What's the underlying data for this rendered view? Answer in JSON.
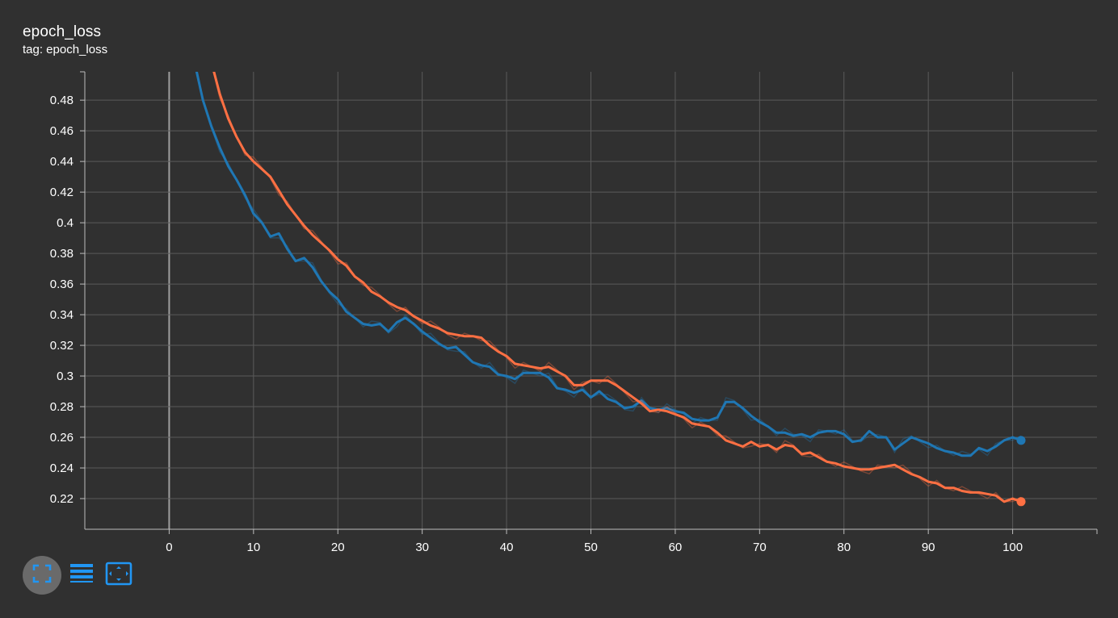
{
  "card": {
    "title": "epoch_loss",
    "subtitle": "tag: epoch_loss"
  },
  "toolbar": {
    "buttons": [
      {
        "icon": "fullscreen-icon"
      },
      {
        "icon": "data-table-icon"
      },
      {
        "icon": "fit-domain-icon"
      }
    ]
  },
  "chart_data": {
    "type": "line",
    "xlim": [
      -10,
      110
    ],
    "ylim": [
      0.2,
      0.4985
    ],
    "x_ticks": [
      0,
      10,
      20,
      30,
      40,
      50,
      60,
      70,
      80,
      90,
      100
    ],
    "x_tick_labels": [
      "0",
      "10",
      "20",
      "30",
      "40",
      "50",
      "60",
      "70",
      "80",
      "90",
      "100"
    ],
    "y_ticks": [
      0.22,
      0.24,
      0.26,
      0.28,
      0.3,
      0.32,
      0.34,
      0.36,
      0.38,
      0.4,
      0.42,
      0.44,
      0.46,
      0.48
    ],
    "y_tick_labels": [
      "0.22",
      "0.24",
      "0.26",
      "0.28",
      "0.3",
      "0.32",
      "0.34",
      "0.36",
      "0.38",
      "0.4",
      "0.42",
      "0.44",
      "0.46",
      "0.48"
    ],
    "grid": true,
    "series": [
      {
        "color": "#1f77b4",
        "x": [
          3,
          4,
          5,
          6,
          7,
          8,
          9,
          10,
          11,
          12,
          13,
          14,
          15,
          16,
          17,
          18,
          19,
          20,
          21,
          22,
          23,
          24,
          25,
          26,
          27,
          28,
          29,
          30,
          31,
          32,
          33,
          34,
          35,
          36,
          37,
          38,
          39,
          40,
          41,
          42,
          43,
          44,
          45,
          46,
          47,
          48,
          49,
          50,
          51,
          52,
          53,
          54,
          55,
          56,
          57,
          58,
          59,
          60,
          61,
          62,
          63,
          64,
          65,
          66,
          67,
          68,
          69,
          70,
          71,
          72,
          73,
          74,
          75,
          76,
          77,
          78,
          79,
          80,
          81,
          82,
          83,
          84,
          85,
          86,
          87,
          88,
          89,
          90,
          91,
          92,
          93,
          94,
          95,
          96,
          97,
          98,
          99,
          100,
          101
        ],
        "y": [
          0.505,
          0.48,
          0.463,
          0.449,
          0.437,
          0.428,
          0.418,
          0.406,
          0.4,
          0.391,
          0.393,
          0.383,
          0.375,
          0.377,
          0.371,
          0.362,
          0.355,
          0.35,
          0.342,
          0.338,
          0.334,
          0.333,
          0.334,
          0.329,
          0.335,
          0.338,
          0.334,
          0.329,
          0.325,
          0.321,
          0.318,
          0.319,
          0.314,
          0.309,
          0.307,
          0.306,
          0.301,
          0.3,
          0.298,
          0.302,
          0.302,
          0.302,
          0.299,
          0.292,
          0.291,
          0.289,
          0.291,
          0.286,
          0.29,
          0.285,
          0.283,
          0.279,
          0.28,
          0.284,
          0.279,
          0.278,
          0.279,
          0.277,
          0.276,
          0.272,
          0.271,
          0.271,
          0.273,
          0.283,
          0.283,
          0.279,
          0.274,
          0.27,
          0.267,
          0.263,
          0.263,
          0.261,
          0.262,
          0.26,
          0.263,
          0.264,
          0.264,
          0.262,
          0.257,
          0.258,
          0.264,
          0.26,
          0.26,
          0.252,
          0.256,
          0.26,
          0.258,
          0.256,
          0.253,
          0.251,
          0.25,
          0.248,
          0.248,
          0.253,
          0.251,
          0.254,
          0.258,
          0.26,
          0.258
        ]
      },
      {
        "color": "#ff7043",
        "x": [
          5,
          6,
          7,
          8,
          9,
          10,
          11,
          12,
          13,
          14,
          15,
          16,
          17,
          18,
          19,
          20,
          21,
          22,
          23,
          24,
          25,
          26,
          27,
          28,
          29,
          30,
          31,
          32,
          33,
          34,
          35,
          36,
          37,
          38,
          39,
          40,
          41,
          42,
          43,
          44,
          45,
          46,
          47,
          48,
          49,
          50,
          51,
          52,
          53,
          54,
          55,
          56,
          57,
          58,
          59,
          60,
          61,
          62,
          63,
          64,
          65,
          66,
          67,
          68,
          69,
          70,
          71,
          72,
          73,
          74,
          75,
          76,
          77,
          78,
          79,
          80,
          81,
          82,
          83,
          84,
          85,
          86,
          87,
          88,
          89,
          90,
          91,
          92,
          93,
          94,
          95,
          96,
          97,
          98,
          99,
          100,
          101
        ],
        "y": [
          0.505,
          0.484,
          0.468,
          0.456,
          0.446,
          0.44,
          0.435,
          0.43,
          0.421,
          0.412,
          0.405,
          0.398,
          0.392,
          0.387,
          0.382,
          0.376,
          0.372,
          0.365,
          0.361,
          0.355,
          0.352,
          0.348,
          0.345,
          0.343,
          0.339,
          0.336,
          0.333,
          0.331,
          0.328,
          0.327,
          0.326,
          0.326,
          0.325,
          0.32,
          0.316,
          0.313,
          0.308,
          0.307,
          0.306,
          0.305,
          0.306,
          0.303,
          0.3,
          0.294,
          0.294,
          0.297,
          0.297,
          0.297,
          0.294,
          0.29,
          0.286,
          0.282,
          0.277,
          0.278,
          0.277,
          0.275,
          0.273,
          0.269,
          0.268,
          0.267,
          0.263,
          0.258,
          0.256,
          0.254,
          0.257,
          0.254,
          0.255,
          0.252,
          0.255,
          0.254,
          0.249,
          0.25,
          0.247,
          0.244,
          0.243,
          0.241,
          0.24,
          0.239,
          0.239,
          0.24,
          0.241,
          0.242,
          0.239,
          0.236,
          0.234,
          0.231,
          0.23,
          0.227,
          0.227,
          0.225,
          0.224,
          0.224,
          0.223,
          0.222,
          0.218,
          0.22,
          0.218
        ]
      }
    ]
  }
}
